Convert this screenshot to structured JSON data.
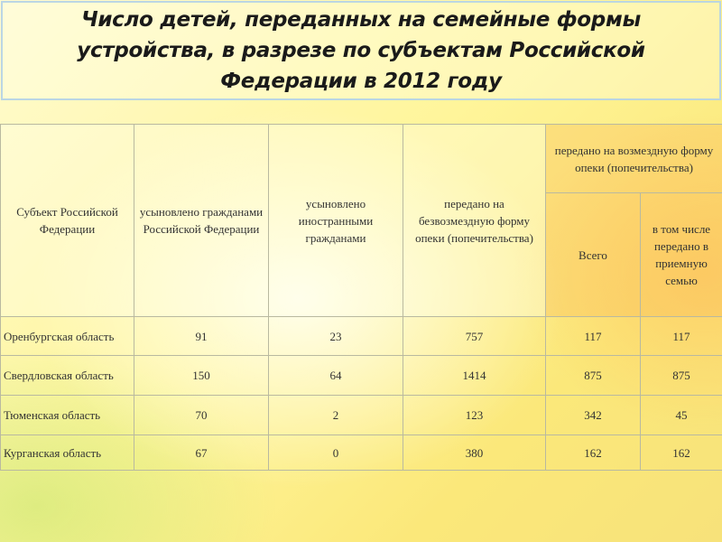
{
  "title": "Число детей, переданных на семейные формы устройства, в разрезе по субъектам Российской Федерации в 2012 году",
  "table": {
    "header": {
      "subject": "Субъект Российской Федерации",
      "adopted_ru": "усыновлено гражданами Российской Федерации",
      "adopted_foreign": "усыновлено иностранными гражданами",
      "free_custody": "передано на безвозмездную форму опеки (попечительства)",
      "paid_custody": "передано на возмездную форму опеки (попечительства)",
      "paid_total": "Всего",
      "foster_family": "в том числе передано в приемную семью"
    },
    "rows": [
      [
        "Оренбургская область",
        91,
        23,
        757,
        117,
        117
      ],
      [
        "Свердловская область",
        150,
        64,
        1414,
        875,
        875
      ],
      [
        "Тюменская область",
        70,
        2,
        123,
        342,
        45
      ],
      [
        "Курганская область",
        67,
        0,
        380,
        162,
        162
      ]
    ]
  }
}
